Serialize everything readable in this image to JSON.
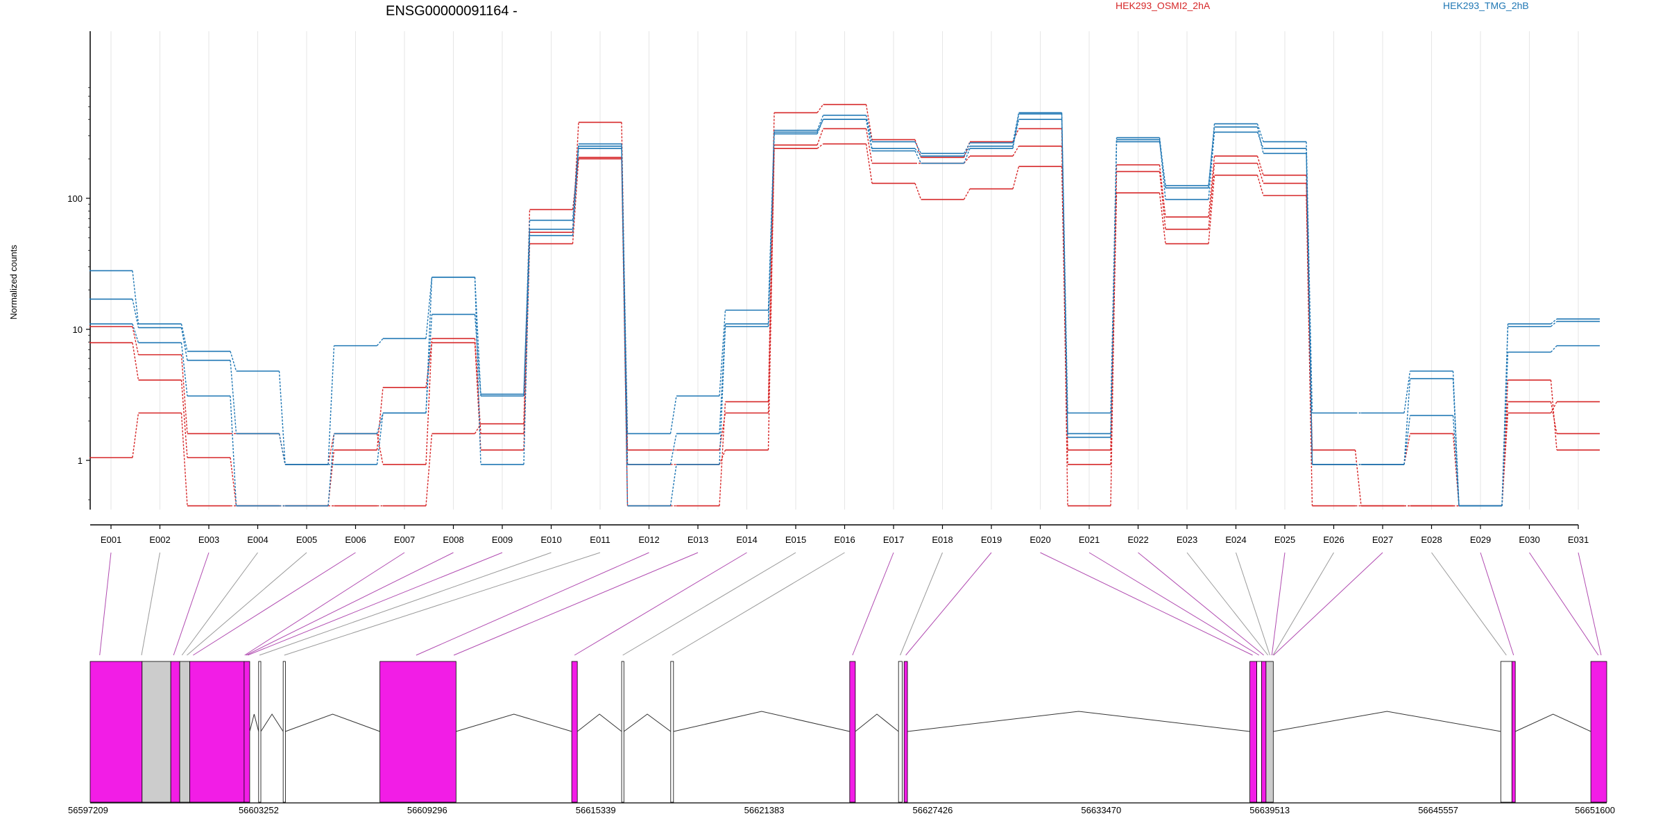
{
  "chart_data": {
    "type": "line",
    "title": "ENSG00000091164 -",
    "ylabel": "Normalized counts",
    "y_scale": "log",
    "y_ticks": [
      "1",
      "10",
      "100"
    ],
    "legend_placement": "top",
    "categories": [
      "E001",
      "E002",
      "E003",
      "E004",
      "E005",
      "E006",
      "E007",
      "E008",
      "E009",
      "E010",
      "E011",
      "E012",
      "E013",
      "E014",
      "E015",
      "E016",
      "E017",
      "E018",
      "E019",
      "E020",
      "E021",
      "E022",
      "E023",
      "E024",
      "E025",
      "E026",
      "E027",
      "E028",
      "E029",
      "E030",
      "E031"
    ],
    "groups": [
      {
        "name": "HEK293_OSMI2_2hA",
        "color": "#d62728"
      },
      {
        "name": "HEK293_TMG_2hB",
        "color": "#1f77b4"
      }
    ],
    "series": [
      {
        "group": 0,
        "values": [
          10.5,
          6.4,
          1.6,
          1.6,
          0.93,
          1.6,
          0.93,
          8.5,
          1.6,
          55,
          380,
          0.93,
          0.93,
          1.2,
          240,
          260,
          130,
          98,
          118,
          175,
          0.93,
          110,
          45,
          150,
          105,
          0.45,
          0.45,
          0.45,
          0.45,
          4.1,
          1.2
        ]
      },
      {
        "group": 0,
        "values": [
          7.9,
          4.1,
          1.05,
          0.45,
          0.45,
          1.2,
          3.6,
          7.9,
          1.2,
          45,
          200,
          1.2,
          1.2,
          2.3,
          255,
          340,
          185,
          185,
          210,
          250,
          1.2,
          160,
          58,
          185,
          130,
          1.2,
          0.45,
          0.45,
          0.45,
          2.3,
          2.8
        ]
      },
      {
        "group": 0,
        "values": [
          1.05,
          2.3,
          0.45,
          0.45,
          0.45,
          0.45,
          0.45,
          1.6,
          1.9,
          82,
          205,
          0.45,
          0.45,
          2.8,
          450,
          520,
          280,
          205,
          270,
          340,
          0.45,
          180,
          72,
          210,
          150,
          0.93,
          0.93,
          1.6,
          0.45,
          2.8,
          1.6
        ]
      },
      {
        "group": 1,
        "values": [
          28,
          11,
          6.8,
          4.8,
          0.93,
          7.5,
          8.5,
          25,
          3.2,
          58,
          250,
          1.6,
          3.1,
          14,
          330,
          430,
          270,
          220,
          265,
          450,
          2.3,
          290,
          120,
          370,
          270,
          2.3,
          2.3,
          4.8,
          0.45,
          11,
          12
        ]
      },
      {
        "group": 1,
        "values": [
          17,
          10.3,
          5.8,
          1.6,
          0.93,
          0.93,
          2.3,
          13,
          3.1,
          68,
          260,
          0.93,
          1.6,
          11,
          320,
          400,
          240,
          210,
          250,
          400,
          1.6,
          280,
          98,
          320,
          240,
          0.93,
          0.93,
          4.2,
          0.45,
          6.7,
          7.5
        ]
      },
      {
        "group": 1,
        "values": [
          11,
          7.9,
          3.1,
          0.45,
          0.45,
          1.6,
          2.3,
          25,
          0.93,
          52,
          240,
          0.45,
          0.93,
          10.5,
          310,
          400,
          230,
          185,
          240,
          440,
          1.5,
          270,
          125,
          350,
          220,
          0.93,
          0.93,
          2.2,
          0.45,
          10.5,
          11.5
        ]
      }
    ],
    "gene_model": {
      "coordinate_labels": [
        "56597209",
        "56603252",
        "56609296",
        "56615339",
        "56621383",
        "56627426",
        "56633470",
        "56639513",
        "56645557",
        "56651600"
      ],
      "exon_colors": {
        "highlighted": "#f21de6",
        "constitutive": "#cccccc",
        "other": "#ffffff"
      }
    }
  }
}
